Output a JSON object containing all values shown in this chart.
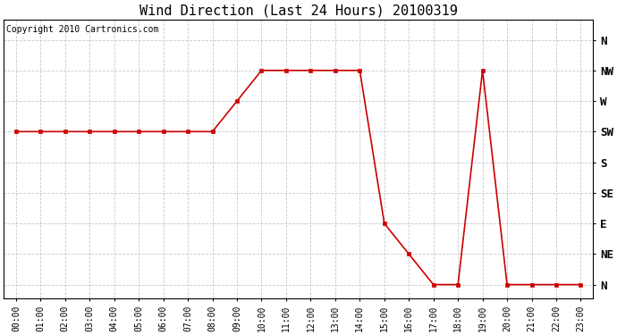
{
  "title": "Wind Direction (Last 24 Hours) 20100319",
  "copyright": "Copyright 2010 Cartronics.com",
  "x_labels": [
    "00:00",
    "01:00",
    "02:00",
    "03:00",
    "04:00",
    "05:00",
    "06:00",
    "07:00",
    "08:00",
    "09:00",
    "10:00",
    "11:00",
    "12:00",
    "13:00",
    "14:00",
    "15:00",
    "16:00",
    "17:00",
    "18:00",
    "19:00",
    "20:00",
    "21:00",
    "22:00",
    "23:00"
  ],
  "x_values": [
    0,
    1,
    2,
    3,
    4,
    5,
    6,
    7,
    8,
    9,
    10,
    11,
    12,
    13,
    14,
    15,
    16,
    17,
    18,
    19,
    20,
    21,
    22,
    23
  ],
  "y_values": [
    225,
    225,
    225,
    225,
    225,
    225,
    225,
    225,
    225,
    270,
    315,
    315,
    315,
    315,
    315,
    90,
    45,
    0,
    0,
    315,
    0,
    0,
    0,
    0
  ],
  "y_ticks_values": [
    360,
    315,
    270,
    225,
    180,
    135,
    90,
    45,
    0
  ],
  "y_ticks_labels": [
    "N",
    "NW",
    "W",
    "SW",
    "S",
    "SE",
    "E",
    "NE",
    "N"
  ],
  "line_color": "#cc0000",
  "marker": "s",
  "marker_size": 3,
  "background_color": "#ffffff",
  "plot_bg_color": "#ffffff",
  "grid_color": "#c8c8c8",
  "title_fontsize": 11,
  "copyright_fontsize": 7,
  "ylim_min": -20,
  "ylim_max": 390,
  "xlim_min": -0.5,
  "xlim_max": 23.5
}
